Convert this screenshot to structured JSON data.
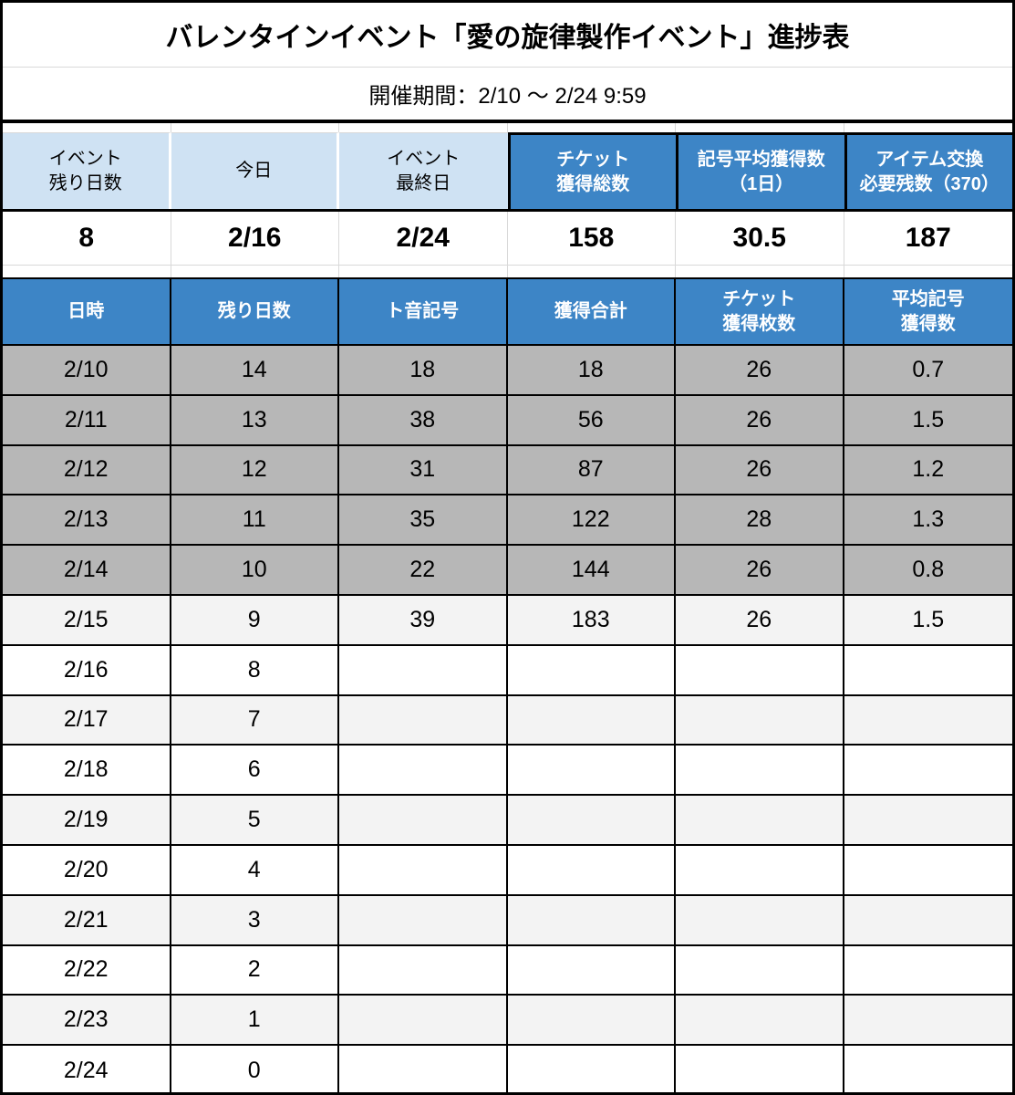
{
  "title": "バレンタインイベント「愛の旋律製作イベント」進捗表",
  "subtitle": "開催期間：2/10 〜 2/24 9:59",
  "colors": {
    "header_blue": "#3d85c6",
    "header_light_blue": "#cfe2f3",
    "row_gray": "#b7b7b7",
    "row_light_gray": "#f3f3f3",
    "border_black": "#000000",
    "gridline_gray": "#d9d9d9"
  },
  "summary": {
    "cells": [
      {
        "label": "イベント\n残り日数",
        "value": "8",
        "style": "light"
      },
      {
        "label": "今日",
        "value": "2/16",
        "style": "light"
      },
      {
        "label": "イベント\n最終日",
        "value": "2/24",
        "style": "light"
      },
      {
        "label": "チケット\n獲得総数",
        "value": "158",
        "style": "blue"
      },
      {
        "label": "記号平均獲得数\n（1日）",
        "value": "30.5",
        "style": "blue"
      },
      {
        "label": "アイテム交換\n必要残数（370）",
        "value": "187",
        "style": "blue"
      }
    ]
  },
  "table": {
    "headers": [
      "日時",
      "残り日数",
      "ト音記号",
      "獲得合計",
      "チケット\n獲得枚数",
      "平均記号\n獲得数"
    ],
    "rows": [
      {
        "date": "2/10",
        "remaining": "14",
        "clef": "18",
        "total": "18",
        "tickets": "26",
        "avg": "0.7",
        "bg": "gray"
      },
      {
        "date": "2/11",
        "remaining": "13",
        "clef": "38",
        "total": "56",
        "tickets": "26",
        "avg": "1.5",
        "bg": "gray"
      },
      {
        "date": "2/12",
        "remaining": "12",
        "clef": "31",
        "total": "87",
        "tickets": "26",
        "avg": "1.2",
        "bg": "gray"
      },
      {
        "date": "2/13",
        "remaining": "11",
        "clef": "35",
        "total": "122",
        "tickets": "28",
        "avg": "1.3",
        "bg": "gray"
      },
      {
        "date": "2/14",
        "remaining": "10",
        "clef": "22",
        "total": "144",
        "tickets": "26",
        "avg": "0.8",
        "bg": "gray"
      },
      {
        "date": "2/15",
        "remaining": "9",
        "clef": "39",
        "total": "183",
        "tickets": "26",
        "avg": "1.5",
        "bg": "light"
      },
      {
        "date": "2/16",
        "remaining": "8",
        "clef": "",
        "total": "",
        "tickets": "",
        "avg": "",
        "bg": "white"
      },
      {
        "date": "2/17",
        "remaining": "7",
        "clef": "",
        "total": "",
        "tickets": "",
        "avg": "",
        "bg": "light"
      },
      {
        "date": "2/18",
        "remaining": "6",
        "clef": "",
        "total": "",
        "tickets": "",
        "avg": "",
        "bg": "white"
      },
      {
        "date": "2/19",
        "remaining": "5",
        "clef": "",
        "total": "",
        "tickets": "",
        "avg": "",
        "bg": "light"
      },
      {
        "date": "2/20",
        "remaining": "4",
        "clef": "",
        "total": "",
        "tickets": "",
        "avg": "",
        "bg": "white"
      },
      {
        "date": "2/21",
        "remaining": "3",
        "clef": "",
        "total": "",
        "tickets": "",
        "avg": "",
        "bg": "light"
      },
      {
        "date": "2/22",
        "remaining": "2",
        "clef": "",
        "total": "",
        "tickets": "",
        "avg": "",
        "bg": "white"
      },
      {
        "date": "2/23",
        "remaining": "1",
        "clef": "",
        "total": "",
        "tickets": "",
        "avg": "",
        "bg": "light"
      },
      {
        "date": "2/24",
        "remaining": "0",
        "clef": "",
        "total": "",
        "tickets": "",
        "avg": "",
        "bg": "white"
      }
    ]
  }
}
